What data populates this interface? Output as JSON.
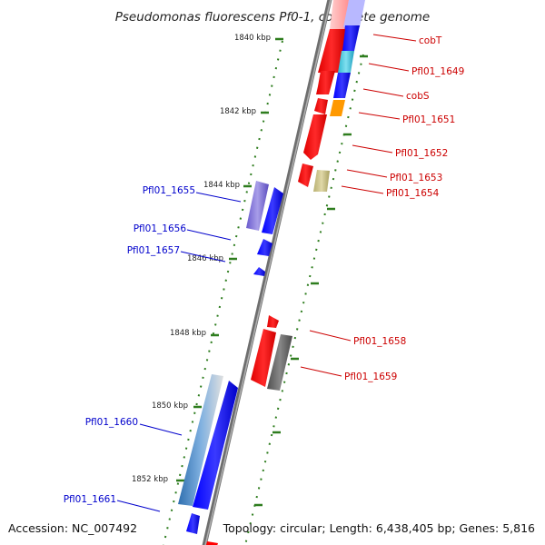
{
  "title": "Pseudomonas fluorescens Pf0-1, complete genome",
  "footer": {
    "accession": "Accession: NC_007492",
    "summary": "Topology: circular; Length: 6,438,405 bp; Genes: 5,816"
  },
  "ruler_labels": [
    "1840 kbp",
    "1842 kbp",
    "1844 kbp",
    "1846 kbp",
    "1848 kbp",
    "1850 kbp",
    "1852 kbp"
  ],
  "colors": {
    "forward_label": "#0000cc",
    "reverse_label": "#cc0000",
    "backbone": "#808080",
    "tick": "#2e7d1e"
  },
  "genes_reverse": [
    {
      "label": "cobT",
      "color": "#ff0000"
    },
    {
      "label": "Pfl01_1649",
      "color": "#ff0000"
    },
    {
      "label": "cobS",
      "color": "#ff0000"
    },
    {
      "label": "Pfl01_1651",
      "color": "#ff0000"
    },
    {
      "label": "Pfl01_1652",
      "color": "#ff0000"
    },
    {
      "label": "Pfl01_1653",
      "color": "#ff0000"
    },
    {
      "label": "Pfl01_1654",
      "color": "#ff0000"
    },
    {
      "label": "Pfl01_1658",
      "color": "#ff0000"
    },
    {
      "label": "Pfl01_1659",
      "color": "#ff0000"
    }
  ],
  "genes_forward": [
    {
      "label": "Pfl01_1655",
      "color": "#0000ff"
    },
    {
      "label": "Pfl01_1656",
      "color": "#0000ff"
    },
    {
      "label": "Pfl01_1657",
      "color": "#0000ff"
    },
    {
      "label": "Pfl01_1660",
      "color": "#0000ff"
    },
    {
      "label": "Pfl01_1661",
      "color": "#0000ff"
    }
  ],
  "feature_colors": {
    "light_blue": "#4fc3d9",
    "orange": "#ff9900",
    "khaki": "#c8c090",
    "purple": "#7b68c8",
    "gray": "#606060",
    "steel_blue": "#3f7fbf",
    "pink": "#ffb0b0",
    "lavender": "#b0b0ff"
  }
}
